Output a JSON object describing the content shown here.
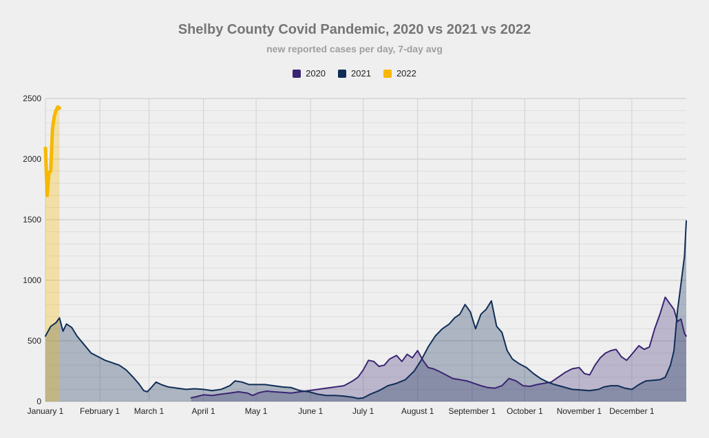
{
  "chart_data": {
    "type": "area",
    "title": "Shelby County Covid Pandemic, 2020 vs 2021 vs 2022",
    "subtitle": "new reported cases per day, 7-day avg",
    "xlabel": "",
    "ylabel": "",
    "ylim": [
      0,
      2500
    ],
    "yticks": [
      "0",
      "500",
      "1000",
      "1500",
      "2000",
      "2500"
    ],
    "xticks": [
      "January 1",
      "February 1",
      "March 1",
      "April 1",
      "May 1",
      "June 1",
      "July 1",
      "August 1",
      "September 1",
      "October 1",
      "November 1",
      "December 1"
    ],
    "xtick_days": [
      0,
      31,
      59,
      90,
      120,
      151,
      181,
      212,
      243,
      273,
      304,
      334
    ],
    "x_unit": "day of year",
    "grid": true,
    "legend": "top-center",
    "series": [
      {
        "name": "2020",
        "color": "#3a2472",
        "points": [
          [
            83,
            30
          ],
          [
            86,
            40
          ],
          [
            90,
            55
          ],
          [
            95,
            50
          ],
          [
            100,
            60
          ],
          [
            105,
            70
          ],
          [
            110,
            80
          ],
          [
            115,
            70
          ],
          [
            118,
            50
          ],
          [
            122,
            75
          ],
          [
            126,
            85
          ],
          [
            130,
            80
          ],
          [
            135,
            75
          ],
          [
            140,
            70
          ],
          [
            145,
            80
          ],
          [
            150,
            90
          ],
          [
            155,
            100
          ],
          [
            160,
            110
          ],
          [
            165,
            120
          ],
          [
            170,
            130
          ],
          [
            175,
            170
          ],
          [
            178,
            200
          ],
          [
            181,
            260
          ],
          [
            184,
            340
          ],
          [
            187,
            330
          ],
          [
            190,
            290
          ],
          [
            193,
            300
          ],
          [
            196,
            350
          ],
          [
            200,
            380
          ],
          [
            203,
            330
          ],
          [
            206,
            390
          ],
          [
            209,
            360
          ],
          [
            212,
            420
          ],
          [
            215,
            340
          ],
          [
            218,
            280
          ],
          [
            221,
            270
          ],
          [
            224,
            250
          ],
          [
            228,
            220
          ],
          [
            232,
            190
          ],
          [
            236,
            180
          ],
          [
            240,
            170
          ],
          [
            244,
            150
          ],
          [
            248,
            130
          ],
          [
            252,
            115
          ],
          [
            256,
            110
          ],
          [
            260,
            130
          ],
          [
            264,
            190
          ],
          [
            268,
            170
          ],
          [
            272,
            130
          ],
          [
            276,
            125
          ],
          [
            280,
            140
          ],
          [
            284,
            150
          ],
          [
            288,
            160
          ],
          [
            292,
            200
          ],
          [
            296,
            240
          ],
          [
            300,
            270
          ],
          [
            304,
            280
          ],
          [
            307,
            230
          ],
          [
            310,
            220
          ],
          [
            313,
            300
          ],
          [
            316,
            360
          ],
          [
            319,
            400
          ],
          [
            322,
            420
          ],
          [
            325,
            430
          ],
          [
            328,
            370
          ],
          [
            331,
            340
          ],
          [
            334,
            390
          ],
          [
            338,
            460
          ],
          [
            341,
            430
          ],
          [
            344,
            450
          ],
          [
            347,
            600
          ],
          [
            350,
            720
          ],
          [
            353,
            860
          ],
          [
            356,
            800
          ],
          [
            358,
            760
          ],
          [
            360,
            660
          ],
          [
            362,
            680
          ],
          [
            364,
            560
          ],
          [
            365,
            540
          ]
        ]
      },
      {
        "name": "2021",
        "color": "#0f2d56",
        "points": [
          [
            0,
            540
          ],
          [
            3,
            620
          ],
          [
            6,
            650
          ],
          [
            8,
            690
          ],
          [
            10,
            580
          ],
          [
            12,
            640
          ],
          [
            15,
            610
          ],
          [
            18,
            540
          ],
          [
            22,
            470
          ],
          [
            26,
            400
          ],
          [
            30,
            370
          ],
          [
            34,
            340
          ],
          [
            38,
            320
          ],
          [
            42,
            300
          ],
          [
            46,
            260
          ],
          [
            50,
            200
          ],
          [
            53,
            150
          ],
          [
            56,
            90
          ],
          [
            58,
            80
          ],
          [
            60,
            110
          ],
          [
            63,
            160
          ],
          [
            66,
            140
          ],
          [
            70,
            120
          ],
          [
            75,
            110
          ],
          [
            80,
            100
          ],
          [
            85,
            105
          ],
          [
            90,
            100
          ],
          [
            95,
            90
          ],
          [
            100,
            100
          ],
          [
            105,
            130
          ],
          [
            108,
            170
          ],
          [
            112,
            160
          ],
          [
            116,
            140
          ],
          [
            120,
            140
          ],
          [
            125,
            140
          ],
          [
            130,
            130
          ],
          [
            135,
            120
          ],
          [
            140,
            115
          ],
          [
            145,
            90
          ],
          [
            150,
            80
          ],
          [
            155,
            60
          ],
          [
            160,
            50
          ],
          [
            165,
            50
          ],
          [
            170,
            45
          ],
          [
            175,
            35
          ],
          [
            178,
            25
          ],
          [
            181,
            30
          ],
          [
            185,
            60
          ],
          [
            190,
            90
          ],
          [
            195,
            130
          ],
          [
            200,
            150
          ],
          [
            205,
            180
          ],
          [
            210,
            250
          ],
          [
            214,
            340
          ],
          [
            218,
            450
          ],
          [
            222,
            540
          ],
          [
            226,
            600
          ],
          [
            230,
            640
          ],
          [
            233,
            690
          ],
          [
            236,
            720
          ],
          [
            239,
            800
          ],
          [
            242,
            740
          ],
          [
            245,
            600
          ],
          [
            248,
            720
          ],
          [
            251,
            760
          ],
          [
            254,
            830
          ],
          [
            257,
            620
          ],
          [
            260,
            570
          ],
          [
            263,
            420
          ],
          [
            266,
            350
          ],
          [
            270,
            310
          ],
          [
            274,
            280
          ],
          [
            278,
            230
          ],
          [
            282,
            190
          ],
          [
            286,
            160
          ],
          [
            290,
            140
          ],
          [
            295,
            120
          ],
          [
            300,
            100
          ],
          [
            305,
            95
          ],
          [
            310,
            90
          ],
          [
            315,
            100
          ],
          [
            318,
            120
          ],
          [
            322,
            130
          ],
          [
            326,
            130
          ],
          [
            330,
            110
          ],
          [
            334,
            100
          ],
          [
            338,
            140
          ],
          [
            342,
            170
          ],
          [
            346,
            175
          ],
          [
            350,
            180
          ],
          [
            353,
            200
          ],
          [
            356,
            300
          ],
          [
            358,
            420
          ],
          [
            360,
            750
          ],
          [
            362,
            970
          ],
          [
            364,
            1200
          ],
          [
            365,
            1490
          ]
        ]
      },
      {
        "name": "2022",
        "color": "#f6b800",
        "points": [
          [
            0,
            2090
          ],
          [
            1,
            1700
          ],
          [
            2,
            1890
          ],
          [
            3,
            1900
          ],
          [
            4,
            2250
          ],
          [
            5,
            2350
          ],
          [
            6,
            2400
          ],
          [
            7,
            2430
          ],
          [
            8,
            2420
          ]
        ]
      }
    ]
  }
}
